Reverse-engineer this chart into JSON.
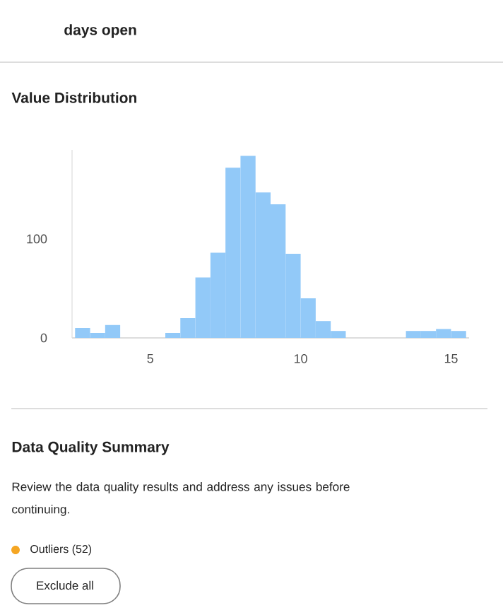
{
  "chart_data": {
    "type": "histogram",
    "title": "Value Distribution",
    "bins": [
      2.5,
      3,
      3.5,
      4,
      4.5,
      5,
      5.5,
      6,
      6.5,
      7,
      7.5,
      8,
      8.5,
      9,
      9.5,
      10,
      10.5,
      11,
      11.5,
      12,
      12.5,
      13,
      13.5,
      14,
      14.5,
      15,
      15.5
    ],
    "values": [
      10,
      5,
      13,
      0,
      0,
      0,
      5,
      20,
      61,
      86,
      172,
      184,
      147,
      135,
      85,
      40,
      17,
      7,
      0,
      0,
      0,
      0,
      7,
      7,
      9,
      7
    ],
    "color": "#92c9f8",
    "xlim": [
      2.4,
      15.6
    ],
    "xticks": [
      5,
      10,
      15
    ],
    "ylim": [
      0,
      190
    ],
    "yticks": [
      0,
      100
    ],
    "annotations": [
      "days open",
      "Data Quality Summary",
      "Review the data quality results and address any issues before continuing.",
      "Outliers (52)",
      "Exclude all"
    ]
  }
}
